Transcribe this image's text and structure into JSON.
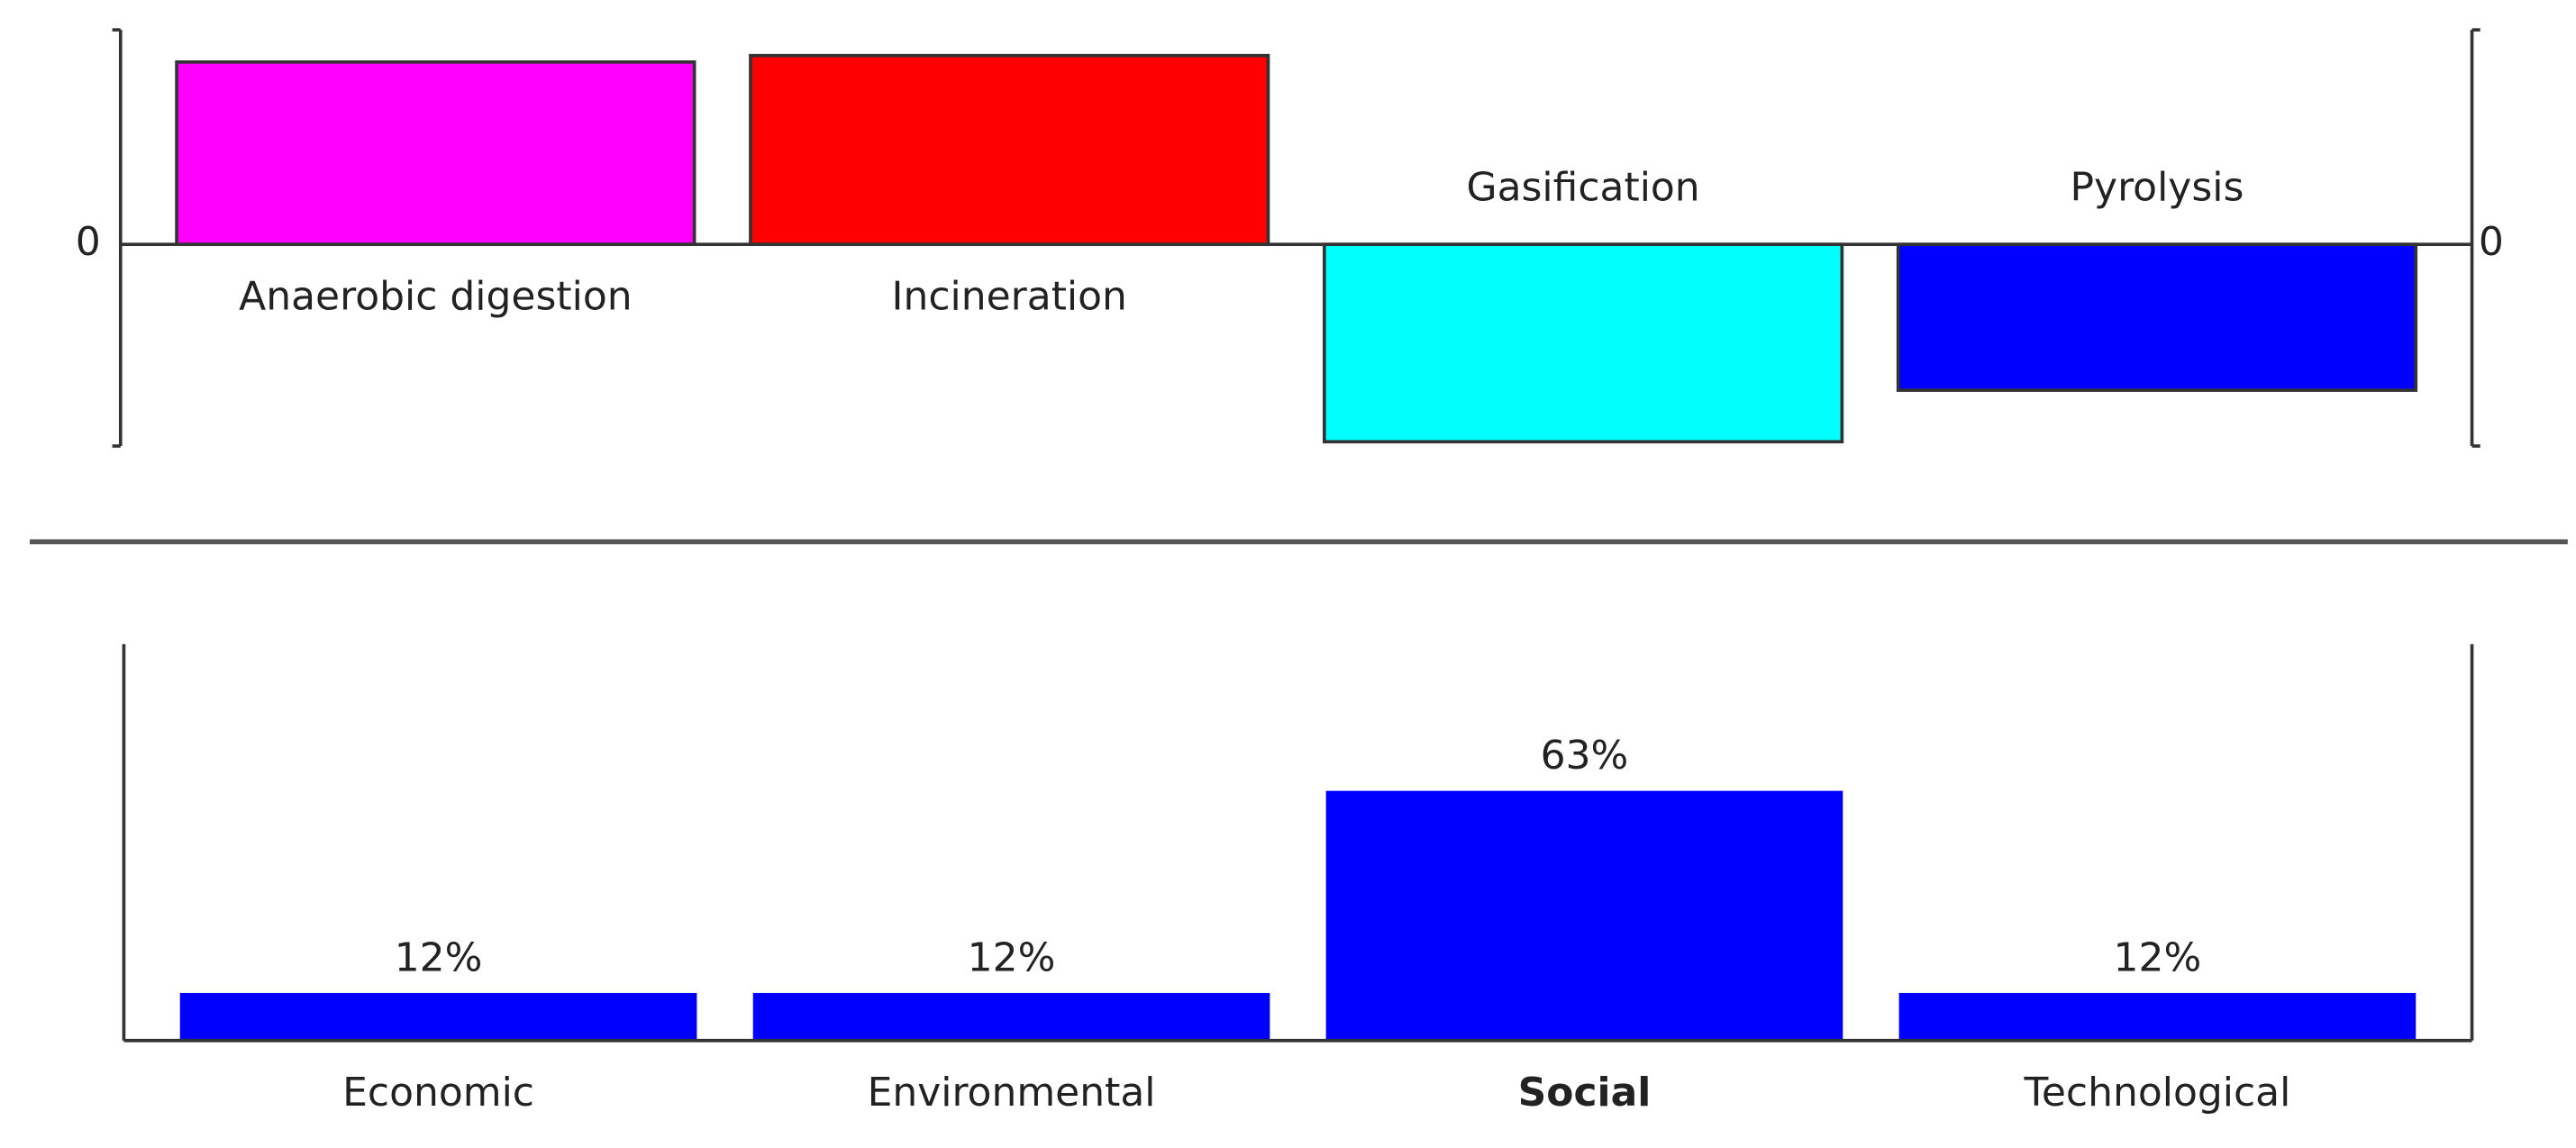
{
  "chart_data": [
    {
      "type": "bar",
      "categories": [
        "Anaerobic digestion",
        "Incineration",
        "Gasification",
        "Pyrolysis"
      ],
      "values": [
        0.85,
        0.88,
        -0.92,
        -0.68
      ],
      "colors": [
        "#ff00ff",
        "#ff0000",
        "#00ffff",
        "#0000ff"
      ],
      "ylim": [
        -0.94,
        1
      ],
      "yticks": [
        0
      ]
    },
    {
      "type": "bar",
      "categories": [
        "Economic",
        "Environmental",
        "Social",
        "Technological"
      ],
      "values": [
        12,
        12,
        63,
        12
      ],
      "value_labels": [
        "12%",
        "12%",
        "63%",
        "12%"
      ],
      "color": "#0000ff",
      "ylim": [
        0,
        100
      ],
      "bold_index": 2
    }
  ]
}
